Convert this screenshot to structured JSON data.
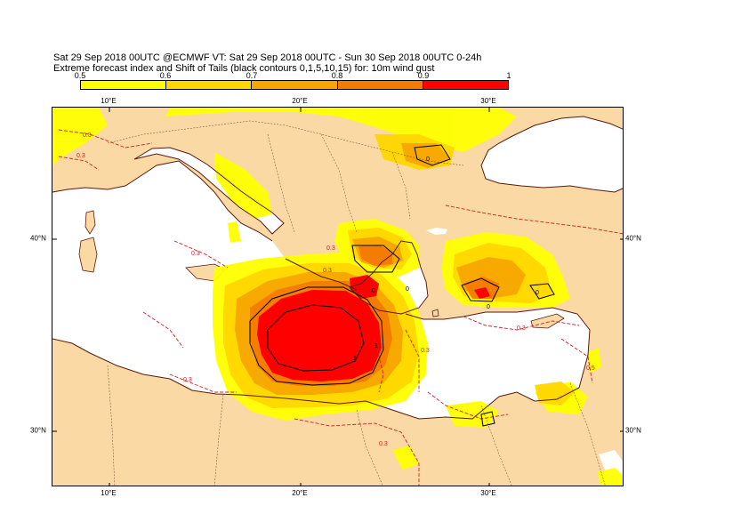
{
  "title_line1": "Sat 29 Sep 2018 00UTC @ECMWF VT: Sat 29 Sep 2018 00UTC - Sun 30 Sep 2018 00UTC  0-24h",
  "title_line2": "Extreme forecast index and Shift of Tails (black contours 0,1,5,10,15) for: 10m wind gust",
  "colorbar": {
    "ticks": [
      "0.5",
      "0.6",
      "0.7",
      "0.8",
      "0.9",
      "1"
    ],
    "colors": [
      "#ffff00",
      "#ffd700",
      "#f7a600",
      "#f47a00",
      "#ff0000"
    ]
  },
  "colors": {
    "land_bg": "#fad9a5",
    "sea": "#ffffff",
    "coast": "#5a1a0c",
    "contour_dashed": "#d02020",
    "contour_black": "#000000"
  },
  "axes": {
    "lon_labels": [
      "10°E",
      "20°E",
      "30°E"
    ],
    "lat_labels": [
      "40°N",
      "30°N"
    ]
  },
  "contour_labels": {
    "dashed": [
      "0.3",
      "0.3",
      "0.3",
      "0.3",
      "0.3",
      "0.3",
      "0.3",
      "0.5",
      "0.3",
      "0.3"
    ],
    "black": [
      "0",
      "0",
      "0",
      "0",
      "0",
      "1",
      "1"
    ]
  }
}
